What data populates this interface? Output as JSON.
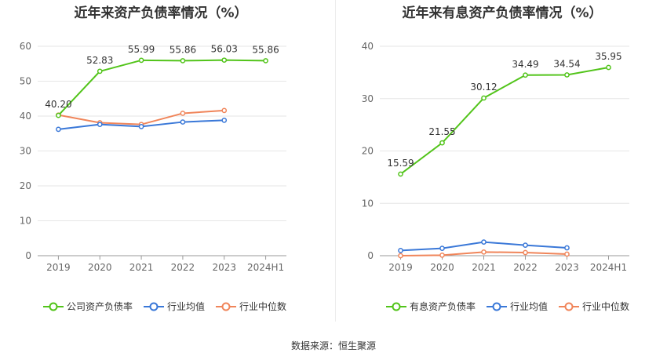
{
  "source_note": "数据来源：恒生聚源",
  "chart_data": [
    {
      "type": "line",
      "title": "近年来资产负债率情况（%）",
      "categories": [
        "2019",
        "2020",
        "2021",
        "2022",
        "2023",
        "2024H1"
      ],
      "ylim": [
        0,
        60
      ],
      "yticks": [
        0,
        10,
        20,
        30,
        40,
        50,
        60
      ],
      "grid": true,
      "legend_position": "bottom",
      "series": [
        {
          "name": "公司资产负债率",
          "color": "#52c41a",
          "values": [
            40.2,
            52.83,
            55.99,
            55.86,
            56.03,
            55.86
          ],
          "labels": [
            "40.20",
            "52.83",
            "55.99",
            "55.86",
            "56.03",
            "55.86"
          ]
        },
        {
          "name": "行业均值",
          "color": "#3a78d8",
          "values": [
            36.2,
            37.6,
            37.0,
            38.3,
            38.8,
            null
          ],
          "labels": []
        },
        {
          "name": "行业中位数",
          "color": "#f0855a",
          "values": [
            40.3,
            38.1,
            37.6,
            40.8,
            41.6,
            null
          ],
          "labels": []
        }
      ]
    },
    {
      "type": "line",
      "title": "近年来有息资产负债率情况（%）",
      "categories": [
        "2019",
        "2020",
        "2021",
        "2022",
        "2023",
        "2024H1"
      ],
      "ylim": [
        0,
        40
      ],
      "yticks": [
        0,
        10,
        20,
        30,
        40
      ],
      "grid": true,
      "legend_position": "bottom",
      "series": [
        {
          "name": "有息资产负债率",
          "color": "#52c41a",
          "values": [
            15.59,
            21.55,
            30.12,
            34.49,
            34.54,
            35.95
          ],
          "labels": [
            "15.59",
            "21.55",
            "30.12",
            "34.49",
            "34.54",
            "35.95"
          ]
        },
        {
          "name": "行业均值",
          "color": "#3a78d8",
          "values": [
            1.0,
            1.4,
            2.6,
            2.0,
            1.5,
            null
          ],
          "labels": []
        },
        {
          "name": "行业中位数",
          "color": "#f0855a",
          "values": [
            0.0,
            0.1,
            0.7,
            0.6,
            0.3,
            null
          ],
          "labels": []
        }
      ]
    }
  ]
}
